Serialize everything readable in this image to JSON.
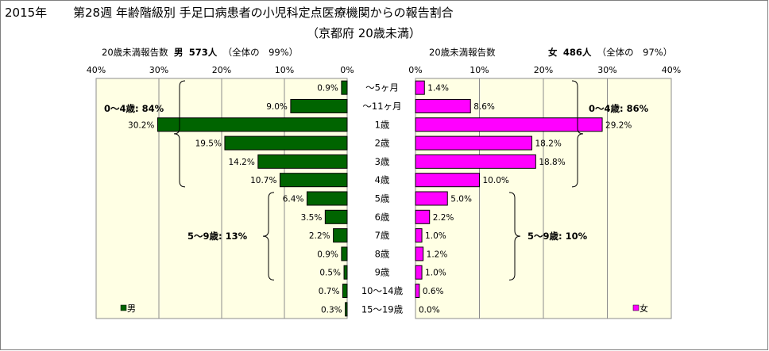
{
  "title": {
    "year": "2015年",
    "main": "第28週 年齢階級別 手足口病患者の小児科定点医療機関からの報告割合",
    "sub": "（京都府 20歳未満）"
  },
  "male_header": {
    "label": "20歳未満報告数",
    "sex": "男",
    "count": "573人",
    "note": "（全体の　99%）"
  },
  "female_header": {
    "label": "20歳未満報告数",
    "sex": "女",
    "count": "486人",
    "note": "（全体の　97%）"
  },
  "groups": {
    "male_0_4": "0～4歳: 84%",
    "male_5_9": "5～9歳: 13%",
    "female_0_4": "0～4歳: 86%",
    "female_5_9": "5～9歳: 10%"
  },
  "colors": {
    "male": "#006400",
    "female": "#ff00ff",
    "plot_bg": "#ffffe4",
    "grid": "#8c8c8c"
  },
  "chart_data": [
    {
      "type": "bar",
      "orientation": "horizontal",
      "direction": "right-to-left",
      "categories": [
        "～5ヶ月",
        "～11ヶ月",
        "1歳",
        "2歳",
        "3歳",
        "4歳",
        "5歳",
        "6歳",
        "7歳",
        "8歳",
        "9歳",
        "10～14歳",
        "15～19歳"
      ],
      "series": [
        {
          "name": "男",
          "values": [
            0.9,
            9.0,
            30.2,
            19.5,
            14.2,
            10.7,
            6.4,
            3.5,
            2.2,
            0.9,
            0.5,
            0.7,
            0.3
          ]
        }
      ],
      "value_labels": [
        "0.9%",
        "9.0%",
        "30.2%",
        "19.5%",
        "14.2%",
        "10.7%",
        "6.4%",
        "3.5%",
        "2.2%",
        "0.9%",
        "0.5%",
        "0.7%",
        "0.3%"
      ],
      "xlim": [
        0,
        40
      ],
      "ticks": [
        "0%",
        "10%",
        "20%",
        "30%",
        "40%"
      ],
      "grid": true,
      "legend": "bottom-left"
    },
    {
      "type": "bar",
      "orientation": "horizontal",
      "direction": "left-to-right",
      "categories": [
        "～5ヶ月",
        "～11ヶ月",
        "1歳",
        "2歳",
        "3歳",
        "4歳",
        "5歳",
        "6歳",
        "7歳",
        "8歳",
        "9歳",
        "10～14歳",
        "15～19歳"
      ],
      "series": [
        {
          "name": "女",
          "values": [
            1.4,
            8.6,
            29.2,
            18.2,
            18.8,
            10.0,
            5.0,
            2.2,
            1.0,
            1.2,
            1.0,
            0.6,
            0.0
          ]
        }
      ],
      "value_labels": [
        "1.4%",
        "8.6%",
        "29.2%",
        "18.2%",
        "18.8%",
        "10.0%",
        "5.0%",
        "2.2%",
        "1.0%",
        "1.2%",
        "1.0%",
        "0.6%",
        "0.0%"
      ],
      "xlim": [
        0,
        40
      ],
      "ticks": [
        "0%",
        "10%",
        "20%",
        "30%",
        "40%"
      ],
      "grid": true,
      "legend": "bottom-right"
    }
  ]
}
